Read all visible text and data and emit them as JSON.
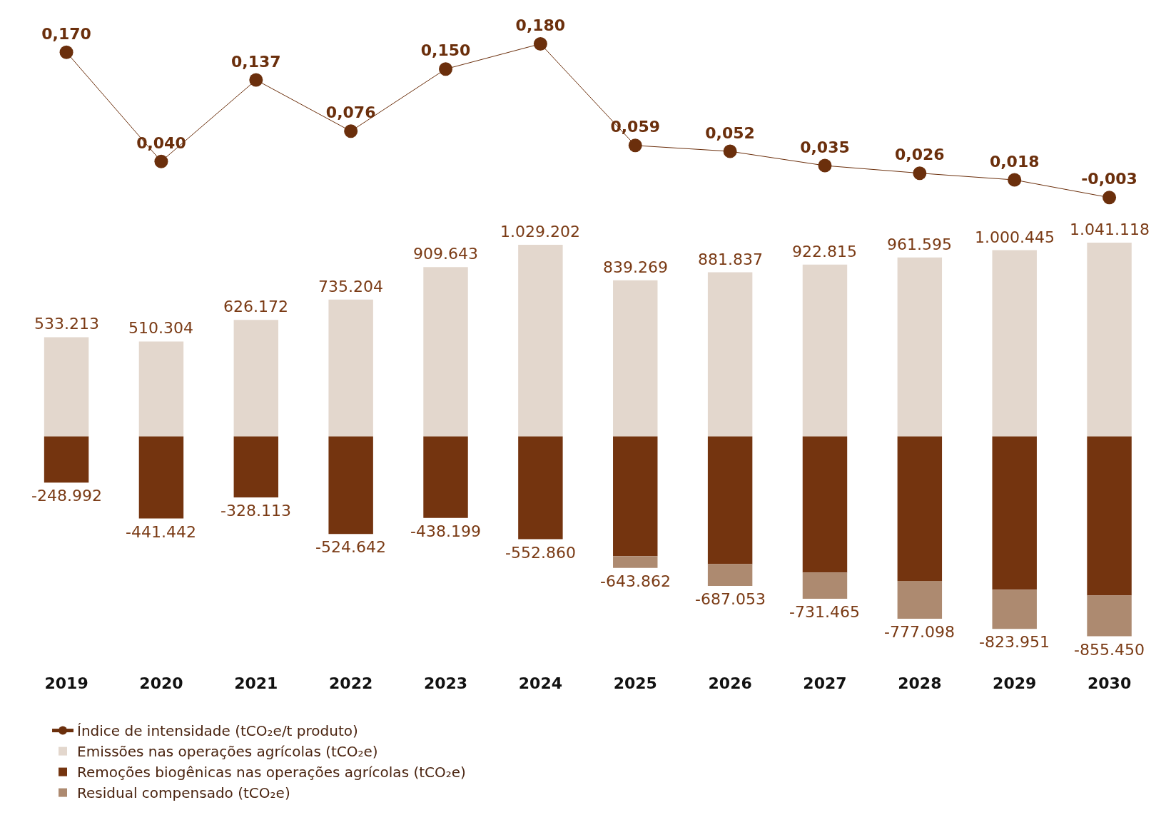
{
  "chart_data": [
    {
      "type": "line",
      "legend": "bottom",
      "marker": "circle",
      "categories": [
        "2019",
        "2020",
        "2021",
        "2022",
        "2023",
        "2024",
        "2025",
        "2026",
        "2027",
        "2028",
        "2029",
        "2030"
      ],
      "tick_labels": false,
      "series": [
        {
          "name": "Índice de intensidade (tCO₂e/t produto)",
          "color": "#6b2f0c",
          "values": [
            0.17,
            0.04,
            0.137,
            0.076,
            0.15,
            0.18,
            0.059,
            0.052,
            0.035,
            0.026,
            0.018,
            -0.003
          ],
          "value_labels": [
            "0,170",
            "0,040",
            "0,137",
            "0,076",
            "0,150",
            "0,180",
            "0,059",
            "0,052",
            "0,035",
            "0,026",
            "0,018",
            "-0,003"
          ]
        }
      ]
    },
    {
      "type": "bar",
      "stacked": true,
      "legend": "bottom",
      "categories": [
        "2019",
        "2020",
        "2021",
        "2022",
        "2023",
        "2024",
        "2025",
        "2026",
        "2027",
        "2028",
        "2029",
        "2030"
      ],
      "series": [
        {
          "name": "Emissões nas operações agrícolas (tCO₂e)",
          "color": "#e3d7cd",
          "values": [
            533213,
            510304,
            626172,
            735204,
            909643,
            1029202,
            839269,
            881837,
            922815,
            961595,
            1000445,
            1041118
          ],
          "value_labels": [
            "533.213",
            "510.304",
            "626.172",
            "735.204",
            "909.643",
            "1.029.202",
            "839.269",
            "881.837",
            "922.815",
            "961.595",
            "1.000.445",
            "1.041.118"
          ]
        },
        {
          "name": "Remoções biogênicas nas operações agrícolas (tCO₂e)",
          "color": "#74340f",
          "values": [
            -248992,
            -441442,
            -328113,
            -524642,
            -438199,
            -552860,
            -643862,
            -687053,
            -731465,
            -777098,
            -823951,
            -855450
          ],
          "value_labels": [
            "-248.992",
            "-441.442",
            "-328.113",
            "-524.642",
            "-438.199",
            "-552.860",
            "-643.862",
            "-687.053",
            "-731.465",
            "-777.098",
            "-823.951",
            "-855.450"
          ]
        },
        {
          "name": "Residual compensado (tCO₂e)",
          "color": "#ad8a70",
          "values": [
            0,
            0,
            0,
            0,
            0,
            0,
            -63000,
            -117000,
            -141000,
            -203000,
            -211000,
            -219000
          ]
        }
      ]
    }
  ]
}
